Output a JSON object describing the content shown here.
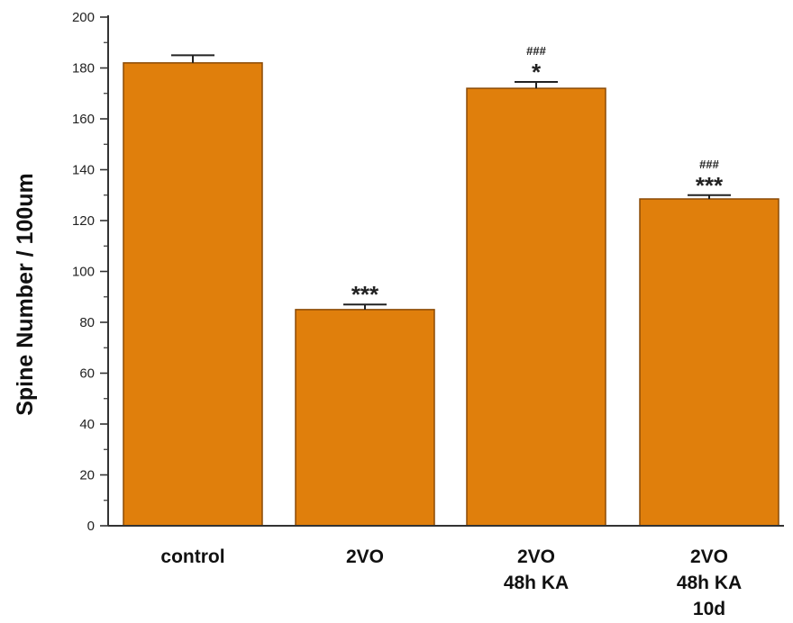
{
  "chart_data": {
    "type": "bar",
    "title": "",
    "xlabel": "",
    "ylabel": "Spine Number / 100um",
    "ylim": [
      0,
      200
    ],
    "yticks": [
      "0",
      "20",
      "40",
      "60",
      "80",
      "100",
      "120",
      "140",
      "160",
      "180",
      "200"
    ],
    "grid": false,
    "bar_color": "#e07f0c",
    "categories": [
      {
        "lines": [
          "control"
        ]
      },
      {
        "lines": [
          "2VO"
        ]
      },
      {
        "lines": [
          "2VO",
          "48h KA"
        ]
      },
      {
        "lines": [
          "2VO",
          "48h KA",
          "10d"
        ]
      }
    ],
    "values": [
      182,
      85,
      172,
      128.5
    ],
    "errors": [
      3,
      2,
      2.5,
      1.5
    ],
    "annotations": [
      {
        "hash": "",
        "stars": ""
      },
      {
        "hash": "",
        "stars": "***"
      },
      {
        "hash": "###",
        "stars": "*"
      },
      {
        "hash": "###",
        "stars": "***"
      }
    ]
  }
}
